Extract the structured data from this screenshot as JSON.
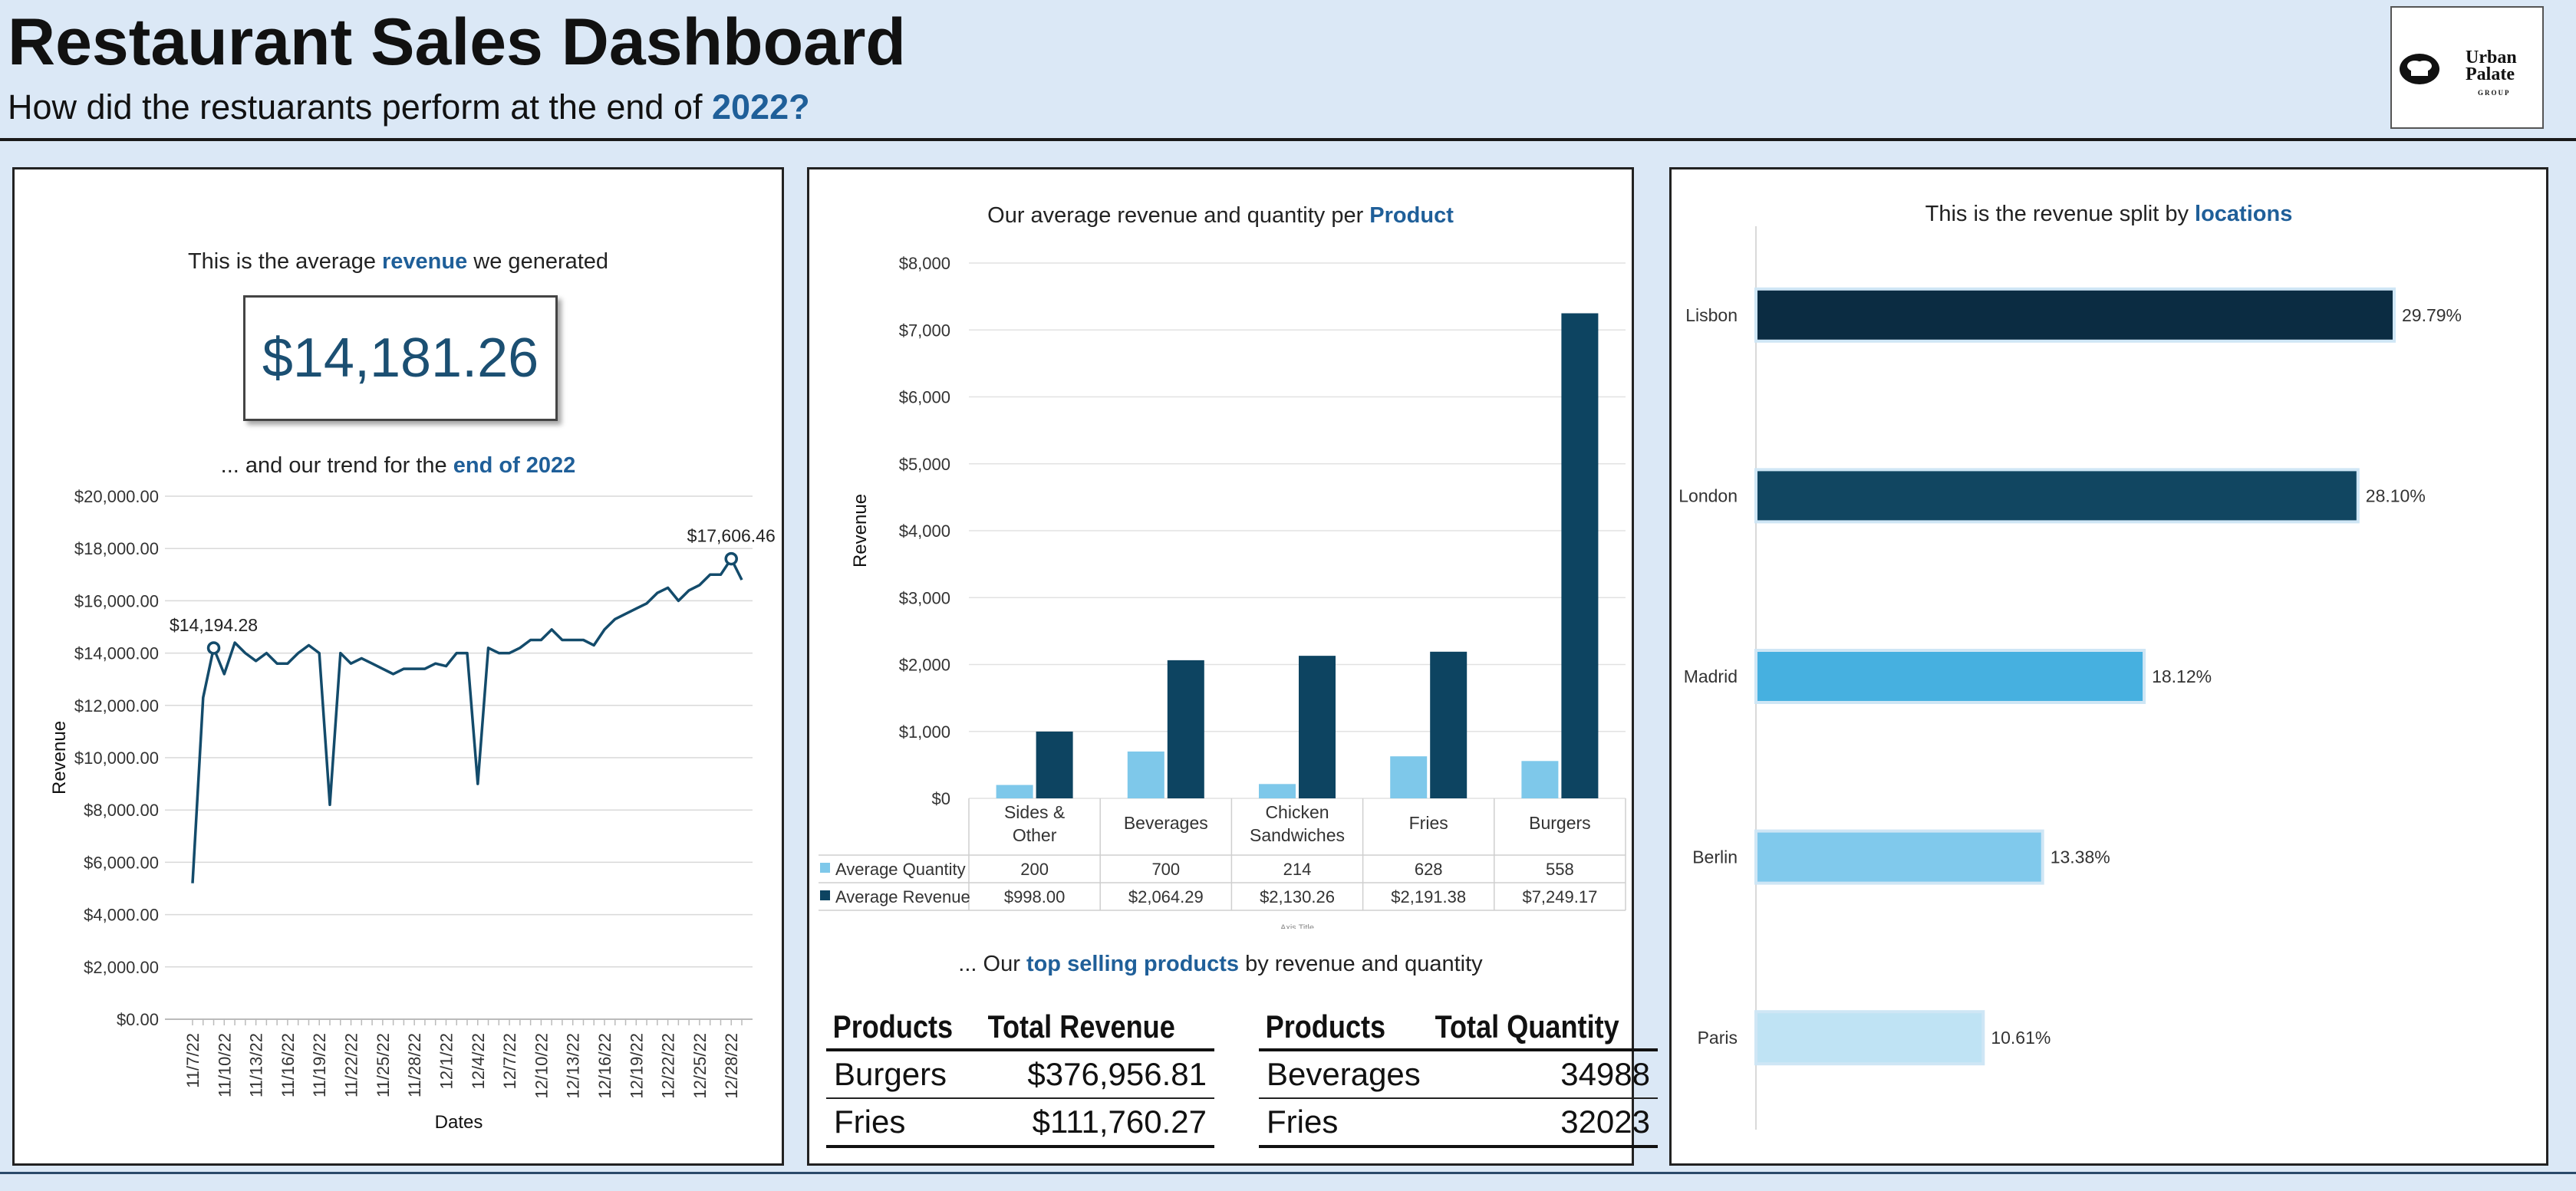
{
  "header": {
    "title": "Restaurant Sales Dashboard",
    "subtitle_prefix": "How did the restuarants perform at the end of ",
    "subtitle_accent": "2022?",
    "logo_line1": "Urban",
    "logo_line2": "Palate",
    "logo_line3": "GROUP"
  },
  "panel1": {
    "kpi_title_prefix": "This is the average ",
    "kpi_title_accent": "revenue",
    "kpi_title_suffix": " we generated",
    "kpi_value": "$14,181.26",
    "trend_title_prefix": "... and our trend for the ",
    "trend_title_accent": "end of 2022"
  },
  "panel2": {
    "title_prefix": "Our average revenue and quantity per ",
    "title_accent": "Product",
    "tables_title_prefix": "... Our ",
    "tables_title_accent": "top selling products",
    "tables_title_suffix": " by revenue and quantity",
    "revenue_table": {
      "headers": [
        "Products",
        "Total Revenue"
      ],
      "rows": [
        [
          "Burgers",
          "$376,956.81"
        ],
        [
          "Fries",
          "$111,760.27"
        ]
      ]
    },
    "quantity_table": {
      "headers": [
        "Products",
        "Total Quantity"
      ],
      "rows": [
        [
          "Beverages",
          "34988"
        ],
        [
          "Fries",
          "32023"
        ]
      ]
    }
  },
  "panel3": {
    "title_prefix": "This is the revenue split by ",
    "title_accent": "locations"
  },
  "chart_data": [
    {
      "type": "line",
      "ylabel": "Revenue",
      "xlabel": "Dates",
      "ylim": [
        0,
        20000
      ],
      "yticks": [
        "$0.00",
        "$2,000.00",
        "$4,000.00",
        "$6,000.00",
        "$8,000.00",
        "$10,000.00",
        "$12,000.00",
        "$14,000.00",
        "$16,000.00",
        "$18,000.00",
        "$20,000.00"
      ],
      "xtick_labels": [
        "11/7/22",
        "11/10/22",
        "11/13/22",
        "11/16/22",
        "11/19/22",
        "11/22/22",
        "11/25/22",
        "11/28/22",
        "12/1/22",
        "12/4/22",
        "12/7/22",
        "12/10/22",
        "12/13/22",
        "12/16/22",
        "12/19/22",
        "12/22/22",
        "12/25/22",
        "12/28/22"
      ],
      "x": [
        "11/7/22",
        "11/8/22",
        "11/9/22",
        "11/10/22",
        "11/11/22",
        "11/12/22",
        "11/13/22",
        "11/14/22",
        "11/15/22",
        "11/16/22",
        "11/17/22",
        "11/18/22",
        "11/19/22",
        "11/20/22",
        "11/21/22",
        "11/22/22",
        "11/23/22",
        "11/24/22",
        "11/25/22",
        "11/26/22",
        "11/27/22",
        "11/28/22",
        "11/29/22",
        "11/30/22",
        "12/1/22",
        "12/2/22",
        "12/3/22",
        "12/4/22",
        "12/5/22",
        "12/6/22",
        "12/7/22",
        "12/8/22",
        "12/9/22",
        "12/10/22",
        "12/11/22",
        "12/12/22",
        "12/13/22",
        "12/14/22",
        "12/15/22",
        "12/16/22",
        "12/17/22",
        "12/18/22",
        "12/19/22",
        "12/20/22",
        "12/21/22",
        "12/22/22",
        "12/23/22",
        "12/24/22",
        "12/25/22",
        "12/26/22",
        "12/27/22",
        "12/28/22",
        "12/29/22"
      ],
      "values": [
        5200,
        12300,
        14194.28,
        13200,
        14400,
        14000,
        13700,
        14000,
        13600,
        13600,
        14000,
        14300,
        14000,
        8200,
        14000,
        13600,
        13800,
        13600,
        13400,
        13200,
        13400,
        13400,
        13400,
        13600,
        13500,
        14000,
        14000,
        9000,
        14200,
        14000,
        14000,
        14200,
        14500,
        14500,
        14900,
        14500,
        14500,
        14500,
        14300,
        14900,
        15300,
        15500,
        15700,
        15900,
        16300,
        16500,
        16000,
        16400,
        16600,
        17000,
        17000,
        17606.46,
        16800
      ],
      "annotations": [
        {
          "x": "11/9/22",
          "label": "$14,194.28"
        },
        {
          "x": "12/28/22",
          "label": "$17,606.46"
        }
      ]
    },
    {
      "type": "bar",
      "ylabel": "Revenue",
      "xlabel": "Axis Title",
      "ylim": [
        0,
        8000
      ],
      "yticks": [
        "$0",
        "$1,000",
        "$2,000",
        "$3,000",
        "$4,000",
        "$5,000",
        "$6,000",
        "$7,000",
        "$8,000"
      ],
      "categories": [
        "Sides & Other",
        "Beverages",
        "Chicken Sandwiches",
        "Fries",
        "Burgers"
      ],
      "category_lines": [
        [
          "Sides &",
          "Other"
        ],
        [
          "Beverages"
        ],
        [
          "Chicken",
          "Sandwiches"
        ],
        [
          "Fries"
        ],
        [
          "Burgers"
        ]
      ],
      "series": [
        {
          "name": "Average Quantity",
          "color": "#7ec8ea",
          "values": [
            200,
            700,
            214,
            628,
            558
          ],
          "labels": [
            "200",
            "700",
            "214",
            "628",
            "558"
          ]
        },
        {
          "name": "Average Revenue",
          "color": "#0d4461",
          "values": [
            998.0,
            2064.29,
            2130.26,
            2191.38,
            7249.17
          ],
          "labels": [
            "$998.00",
            "$2,064.29",
            "$2,130.26",
            "$2,191.38",
            "$7,249.17"
          ]
        }
      ],
      "data_table": true
    },
    {
      "type": "bar",
      "orientation": "horizontal",
      "categories": [
        "Lisbon",
        "London",
        "Madrid",
        "Berlin",
        "Paris"
      ],
      "values": [
        29.79,
        28.1,
        18.12,
        13.38,
        10.61
      ],
      "labels": [
        "29.79%",
        "28.10%",
        "18.12%",
        "13.38%",
        "10.61%"
      ],
      "colors": [
        "#0b2c42",
        "#114661",
        "#46b0e0",
        "#80c9ec",
        "#bfe3f4"
      ]
    }
  ]
}
